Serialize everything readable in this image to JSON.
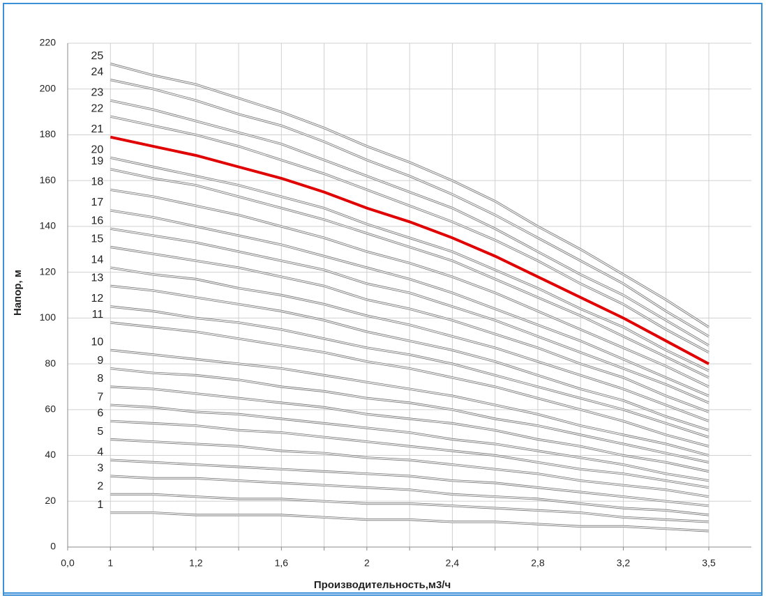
{
  "chart_data": {
    "type": "line",
    "x_label": "Производительность,м3/ч",
    "y_label": "Напор, м",
    "categories": [
      "0,0",
      "1",
      null,
      "1,2",
      null,
      "1,6",
      null,
      "2",
      null,
      "2,4",
      null,
      "2,8",
      null,
      "3,2",
      null,
      "3,5"
    ],
    "ylim": [
      0,
      220
    ],
    "yticks": [
      0,
      20,
      40,
      60,
      80,
      100,
      120,
      140,
      160,
      180,
      200,
      220
    ],
    "grid": true,
    "series": [
      {
        "name": "1",
        "color": "#a8a8a8",
        "values": [
          null,
          15,
          15,
          14,
          14,
          14,
          13,
          12,
          12,
          11,
          11,
          10,
          9,
          9,
          8,
          7
        ]
      },
      {
        "name": "2",
        "color": "#a8a8a8",
        "values": [
          null,
          23,
          23,
          22,
          21,
          21,
          20,
          19,
          19,
          18,
          17,
          16,
          15,
          13,
          12,
          11
        ]
      },
      {
        "name": "3",
        "color": "#a8a8a8",
        "values": [
          null,
          31,
          30,
          30,
          29,
          28,
          27,
          26,
          25,
          23,
          22,
          21,
          19,
          17,
          16,
          14
        ]
      },
      {
        "name": "4",
        "color": "#a8a8a8",
        "values": [
          null,
          38,
          37,
          36,
          35,
          34,
          33,
          32,
          31,
          29,
          28,
          26,
          24,
          22,
          20,
          18
        ]
      },
      {
        "name": "5",
        "color": "#a8a8a8",
        "values": [
          null,
          47,
          46,
          45,
          44,
          42,
          41,
          39,
          38,
          36,
          34,
          32,
          29,
          27,
          25,
          22
        ]
      },
      {
        "name": "6",
        "color": "#a8a8a8",
        "values": [
          null,
          55,
          54,
          53,
          51,
          50,
          48,
          46,
          44,
          42,
          40,
          37,
          34,
          32,
          29,
          26
        ]
      },
      {
        "name": "7",
        "color": "#a8a8a8",
        "values": [
          null,
          62,
          61,
          59,
          58,
          56,
          54,
          52,
          50,
          47,
          45,
          42,
          39,
          36,
          32,
          29
        ]
      },
      {
        "name": "8",
        "color": "#a8a8a8",
        "values": [
          null,
          70,
          69,
          67,
          65,
          63,
          61,
          58,
          56,
          54,
          51,
          47,
          44,
          40,
          37,
          33
        ]
      },
      {
        "name": "9",
        "color": "#a8a8a8",
        "values": [
          null,
          78,
          76,
          75,
          73,
          70,
          68,
          65,
          63,
          60,
          56,
          53,
          49,
          45,
          41,
          37
        ]
      },
      {
        "name": "10",
        "color": "#a8a8a8",
        "values": [
          null,
          86,
          84,
          82,
          80,
          78,
          75,
          72,
          69,
          66,
          62,
          58,
          53,
          49,
          45,
          40
        ]
      },
      {
        "name": "11",
        "color": "#a8a8a8",
        "values": [
          null,
          98,
          96,
          94,
          91,
          88,
          85,
          81,
          78,
          74,
          70,
          65,
          60,
          55,
          49,
          44
        ]
      },
      {
        "name": "12",
        "color": "#a8a8a8",
        "values": [
          null,
          105,
          103,
          100,
          98,
          95,
          91,
          87,
          84,
          80,
          75,
          70,
          65,
          60,
          54,
          48
        ]
      },
      {
        "name": "13",
        "color": "#a8a8a8",
        "values": [
          null,
          114,
          112,
          109,
          106,
          103,
          99,
          94,
          90,
          86,
          81,
          75,
          69,
          64,
          57,
          51
        ]
      },
      {
        "name": "14",
        "color": "#a8a8a8",
        "values": [
          null,
          122,
          119,
          117,
          113,
          110,
          106,
          101,
          97,
          92,
          87,
          81,
          75,
          69,
          62,
          55
        ]
      },
      {
        "name": "15",
        "color": "#a8a8a8",
        "values": [
          null,
          131,
          128,
          125,
          122,
          118,
          114,
          108,
          104,
          99,
          93,
          87,
          80,
          74,
          66,
          59
        ]
      },
      {
        "name": "16",
        "color": "#a8a8a8",
        "values": [
          null,
          139,
          136,
          133,
          129,
          125,
          121,
          115,
          111,
          105,
          99,
          92,
          85,
          78,
          71,
          63
        ]
      },
      {
        "name": "17",
        "color": "#a8a8a8",
        "values": [
          null,
          147,
          144,
          140,
          136,
          132,
          127,
          122,
          117,
          111,
          104,
          97,
          90,
          82,
          74,
          66
        ]
      },
      {
        "name": "18",
        "color": "#a8a8a8",
        "values": [
          null,
          156,
          153,
          149,
          145,
          140,
          135,
          129,
          124,
          118,
          111,
          103,
          95,
          87,
          79,
          70
        ]
      },
      {
        "name": "19",
        "color": "#a8a8a8",
        "values": [
          null,
          165,
          161,
          158,
          153,
          148,
          143,
          137,
          131,
          125,
          117,
          109,
          101,
          92,
          83,
          74
        ]
      },
      {
        "name": "20",
        "color": "#a8a8a8",
        "values": [
          null,
          170,
          166,
          162,
          158,
          153,
          148,
          141,
          135,
          129,
          121,
          113,
          104,
          96,
          86,
          77
        ]
      },
      {
        "name": "21",
        "color": "#e00000",
        "values": [
          null,
          179,
          175,
          171,
          166,
          161,
          155,
          148,
          142,
          135,
          127,
          118,
          109,
          100,
          90,
          80
        ]
      },
      {
        "name": "22",
        "color": "#a8a8a8",
        "values": [
          null,
          188,
          184,
          180,
          175,
          169,
          163,
          156,
          149,
          142,
          134,
          125,
          115,
          106,
          95,
          85
        ]
      },
      {
        "name": "23",
        "color": "#a8a8a8",
        "values": [
          null,
          195,
          191,
          186,
          181,
          176,
          169,
          162,
          155,
          148,
          139,
          129,
          119,
          110,
          99,
          88
        ]
      },
      {
        "name": "24",
        "color": "#a8a8a8",
        "values": [
          null,
          204,
          200,
          195,
          189,
          184,
          177,
          169,
          162,
          154,
          145,
          135,
          125,
          115,
          103,
          92
        ]
      },
      {
        "name": "25",
        "color": "#a8a8a8",
        "values": [
          null,
          211,
          206,
          202,
          196,
          190,
          183,
          175,
          168,
          160,
          151,
          140,
          130,
          119,
          108,
          96
        ]
      }
    ]
  }
}
